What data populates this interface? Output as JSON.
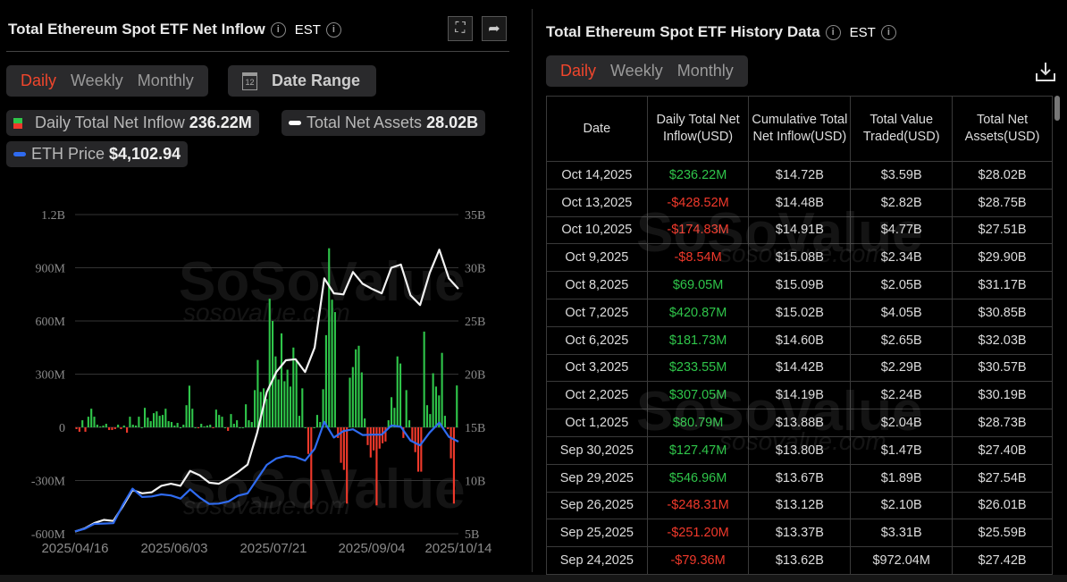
{
  "left_panel": {
    "title": "Total Ethereum Spot ETF Net Inflow",
    "timezone": "EST",
    "tabs": [
      {
        "label": "Daily",
        "active": true
      },
      {
        "label": "Weekly",
        "active": false
      },
      {
        "label": "Monthly",
        "active": false
      }
    ],
    "date_range_label": "Date Range",
    "calendar_day": "12",
    "legend": [
      {
        "label": "Daily Total Net Inflow",
        "value": "236.22M",
        "color": [
          "#2fc54a",
          "#f0392b"
        ]
      },
      {
        "label": "Total Net Assets",
        "value": "28.02B",
        "color": "#ffffff"
      },
      {
        "label": "ETH Price",
        "value": "$4,102.94",
        "color": "#2f6bf0"
      }
    ],
    "watermark": "SoSoValue",
    "watermark_url": "sosovalue.com"
  },
  "chart_data": {
    "type": "bar+line",
    "x_ticks": [
      "2025/04/16",
      "2025/06/03",
      "2025/07/21",
      "2025/09/04",
      "2025/10/14"
    ],
    "left_axis": {
      "ticks": [
        "1.2B",
        "900M",
        "600M",
        "300M",
        "0",
        "-300M",
        "-600M"
      ],
      "range_musd": [
        -600,
        1200
      ]
    },
    "right_axis": {
      "ticks": [
        "35B",
        "30B",
        "25B",
        "20B",
        "15B",
        "10B",
        "5B"
      ],
      "range_busd": [
        5,
        35
      ]
    },
    "grid": true,
    "colors": {
      "positive": "#2fc54a",
      "negative": "#f0392b",
      "assets": "#f2f2f2",
      "price": "#2f6bf0"
    },
    "series": [
      {
        "name": "Daily Total Net Inflow",
        "unit": "M USD",
        "type": "bar",
        "values": [
          -10,
          -25,
          40,
          -25,
          60,
          105,
          60,
          15,
          5,
          10,
          20,
          -15,
          -15,
          -10,
          15,
          -10,
          10,
          -30,
          60,
          15,
          10,
          60,
          0,
          110,
          55,
          35,
          80,
          90,
          65,
          70,
          105,
          35,
          30,
          10,
          25,
          0,
          15,
          125,
          235,
          105,
          0,
          -5,
          20,
          5,
          10,
          15,
          -5,
          100,
          70,
          60,
          0,
          -20,
          75,
          20,
          40,
          0,
          0,
          130,
          40,
          30,
          210,
          380,
          200,
          220,
          160,
          725,
          600,
          400,
          270,
          530,
          260,
          325,
          230,
          450,
          380,
          65,
          220,
          0,
          -150,
          -460,
          0,
          70,
          30,
          215,
          520,
          1010,
          720,
          650,
          -60,
          -200,
          -240,
          -430,
          280,
          340,
          440,
          460,
          310,
          50,
          -100,
          -170,
          -130,
          -440,
          -120,
          -90,
          -80,
          40,
          170,
          110,
          400,
          360,
          -60,
          210,
          40,
          -80,
          -140,
          -250,
          -250,
          540,
          125,
          75,
          305,
          230,
          180,
          420,
          65,
          -10,
          -175,
          -430,
          236.22
        ]
      },
      {
        "name": "Total Net Assets",
        "unit": "B USD",
        "type": "line",
        "axis": "right",
        "values": [
          5.2,
          5.5,
          6.0,
          6.3,
          6.2,
          7.6,
          9.1,
          8.8,
          8.9,
          9.5,
          9.7,
          9.5,
          10.9,
          10.5,
          9.8,
          9.7,
          10.2,
          10.8,
          11.5,
          14.5,
          18.3,
          20.2,
          21.3,
          21.4,
          20.2,
          22.5,
          29.0,
          27.6,
          27.5,
          29.6,
          28.5,
          28.0,
          27.6,
          30.0,
          30.3,
          27.4,
          26.5,
          29.5,
          31.7,
          29.0,
          28.02
        ]
      },
      {
        "name": "ETH Price",
        "unit": "USD",
        "type": "line",
        "values": [
          1580,
          1650,
          1790,
          1800,
          1810,
          2330,
          2780,
          2545,
          2560,
          2620,
          2590,
          2500,
          2760,
          2530,
          2350,
          2360,
          2420,
          2585,
          2650,
          3050,
          3450,
          3630,
          3700,
          3670,
          3570,
          3900,
          4660,
          4220,
          4400,
          4450,
          4290,
          4300,
          4300,
          4560,
          4520,
          4130,
          4000,
          4360,
          4640,
          4240,
          4102.94
        ]
      }
    ]
  },
  "right_panel": {
    "title": "Total Ethereum Spot ETF History Data",
    "timezone": "EST",
    "tabs": [
      {
        "label": "Daily",
        "active": true
      },
      {
        "label": "Weekly",
        "active": false
      },
      {
        "label": "Monthly",
        "active": false
      }
    ],
    "watermark": "SoSoValue",
    "watermark_url": "sosovalue.com",
    "columns": [
      "Date",
      "Daily Total Net Inflow(USD)",
      "Cumulative Total Net Inflow(USD)",
      "Total Value Traded(USD)",
      "Total Net Assets(USD)"
    ],
    "rows": [
      [
        "Oct 14,2025",
        "$236.22M",
        "$14.72B",
        "$3.59B",
        "$28.02B"
      ],
      [
        "Oct 13,2025",
        "-$428.52M",
        "$14.48B",
        "$2.82B",
        "$28.75B"
      ],
      [
        "Oct 10,2025",
        "-$174.83M",
        "$14.91B",
        "$4.77B",
        "$27.51B"
      ],
      [
        "Oct 9,2025",
        "-$8.54M",
        "$15.08B",
        "$2.34B",
        "$29.90B"
      ],
      [
        "Oct 8,2025",
        "$69.05M",
        "$15.09B",
        "$2.05B",
        "$31.17B"
      ],
      [
        "Oct 7,2025",
        "$420.87M",
        "$15.02B",
        "$4.05B",
        "$30.85B"
      ],
      [
        "Oct 6,2025",
        "$181.73M",
        "$14.60B",
        "$2.65B",
        "$32.03B"
      ],
      [
        "Oct 3,2025",
        "$233.55M",
        "$14.42B",
        "$2.29B",
        "$30.57B"
      ],
      [
        "Oct 2,2025",
        "$307.05M",
        "$14.19B",
        "$2.24B",
        "$30.19B"
      ],
      [
        "Oct 1,2025",
        "$80.79M",
        "$13.88B",
        "$2.04B",
        "$28.73B"
      ],
      [
        "Sep 30,2025",
        "$127.47M",
        "$13.80B",
        "$1.47B",
        "$27.40B"
      ],
      [
        "Sep 29,2025",
        "$546.96M",
        "$13.67B",
        "$1.89B",
        "$27.54B"
      ],
      [
        "Sep 26,2025",
        "-$248.31M",
        "$13.12B",
        "$2.10B",
        "$26.01B"
      ],
      [
        "Sep 25,2025",
        "-$251.20M",
        "$13.37B",
        "$3.31B",
        "$25.59B"
      ],
      [
        "Sep 24,2025",
        "-$79.36M",
        "$13.62B",
        "$972.04M",
        "$27.42B"
      ]
    ]
  }
}
